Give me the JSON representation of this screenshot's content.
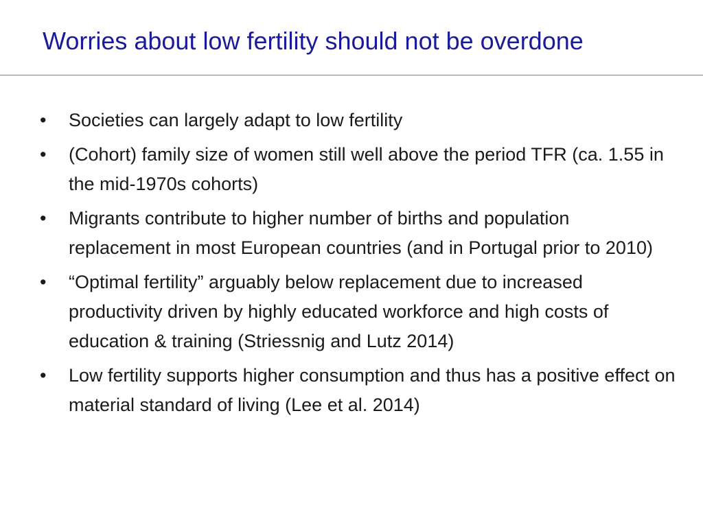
{
  "slide": {
    "title": "Worries about low fertility should not be overdone",
    "bullets": [
      "Societies can largely adapt to low fertility",
      "(Cohort) family size of women still well above the period TFR (ca. 1.55 in the mid-1970s cohorts)",
      "Migrants contribute to higher number of births and population replacement in most European countries (and in Portugal prior to 2010)",
      "“Optimal fertility” arguably below replacement due to increased productivity driven by highly educated workforce and high costs of education & training (Striessnig and Lutz 2014)",
      "Low fertility supports higher consumption and thus has a positive effect on material standard of living (Lee et al. 2014)"
    ],
    "bullet_glyph": "•"
  },
  "colors": {
    "title": "#1a1a9c",
    "body_text": "#1a1a1a",
    "divider": "#808080"
  }
}
